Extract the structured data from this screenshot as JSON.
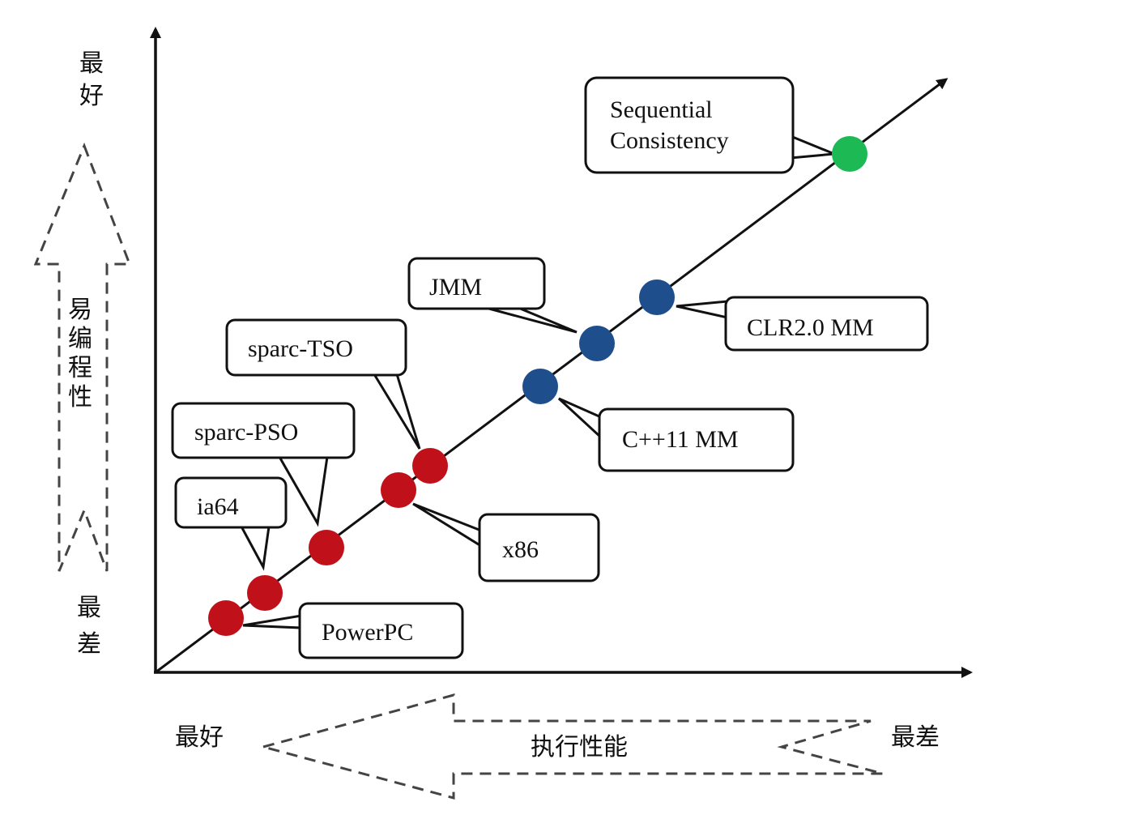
{
  "axes": {
    "y_top_label_line1": "最",
    "y_top_label_line2": "好",
    "y_bottom_label_line1": "最",
    "y_bottom_label_line2": "差",
    "y_arrow_text": [
      "易",
      "编",
      "程",
      "性"
    ],
    "x_left_label": "最好",
    "x_right_label": "最差",
    "x_arrow_text": "执行性能"
  },
  "models": [
    {
      "key": "powerpc",
      "label": "PowerPC",
      "color": "#c0101a"
    },
    {
      "key": "ia64",
      "label": "ia64",
      "color": "#c0101a"
    },
    {
      "key": "sparc-pso",
      "label": "sparc-PSO",
      "color": "#c0101a"
    },
    {
      "key": "x86",
      "label": "x86",
      "color": "#c0101a"
    },
    {
      "key": "sparc-tso",
      "label": "sparc-TSO",
      "color": "#c0101a"
    },
    {
      "key": "cpp11",
      "label": "C++11 MM",
      "color": "#1f4e8c"
    },
    {
      "key": "jmm",
      "label": "JMM",
      "color": "#1f4e8c"
    },
    {
      "key": "clr",
      "label": "CLR2.0 MM",
      "color": "#1f4e8c"
    },
    {
      "key": "sc",
      "label_line1": "Sequential",
      "label_line2": "Consistency",
      "color": "#1db954"
    }
  ]
}
